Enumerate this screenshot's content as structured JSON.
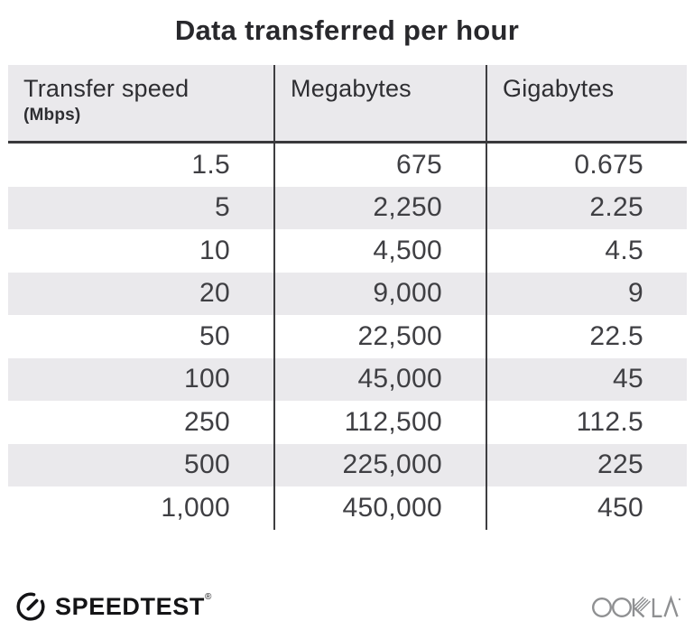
{
  "title": "Data transferred per hour",
  "table": {
    "columns": [
      {
        "label": "Transfer speed",
        "sublabel": "(Mbps)"
      },
      {
        "label": "Megabytes",
        "sublabel": ""
      },
      {
        "label": "Gigabytes",
        "sublabel": ""
      }
    ],
    "rows": [
      [
        "1.5",
        "675",
        "0.675"
      ],
      [
        "5",
        "2,250",
        "2.25"
      ],
      [
        "10",
        "4,500",
        "4.5"
      ],
      [
        "20",
        "9,000",
        "9"
      ],
      [
        "50",
        "22,500",
        "22.5"
      ],
      [
        "100",
        "45,000",
        "45"
      ],
      [
        "250",
        "112,500",
        "112.5"
      ],
      [
        "500",
        "225,000",
        "225"
      ],
      [
        "1,000",
        "450,000",
        "450"
      ]
    ]
  },
  "chart_data": {
    "type": "table",
    "title": "Data transferred per hour",
    "columns": [
      "Transfer speed (Mbps)",
      "Megabytes",
      "Gigabytes"
    ],
    "rows": [
      [
        1.5,
        675,
        0.675
      ],
      [
        5,
        2250,
        2.25
      ],
      [
        10,
        4500,
        4.5
      ],
      [
        20,
        9000,
        9
      ],
      [
        50,
        22500,
        22.5
      ],
      [
        100,
        45000,
        45
      ],
      [
        250,
        112500,
        112.5
      ],
      [
        500,
        225000,
        225
      ],
      [
        1000,
        450000,
        450
      ]
    ]
  },
  "footer": {
    "speedtest_label": "SPEEDTEST",
    "speedtest_mark": "®",
    "ookla_label": "OOKLA"
  },
  "icons": {
    "speedtest_gauge": "gauge-icon",
    "ookla_logo": "ookla-logo"
  },
  "colors": {
    "header_bg": "#eae9ec",
    "stripe_bg": "#eae9ec",
    "divider": "#3e3e41",
    "header_border": "#39393c",
    "title_text": "#28282c",
    "number_text": "#3f3f43",
    "speedtest_black": "#141416",
    "ookla_gray": "#8f9092"
  }
}
